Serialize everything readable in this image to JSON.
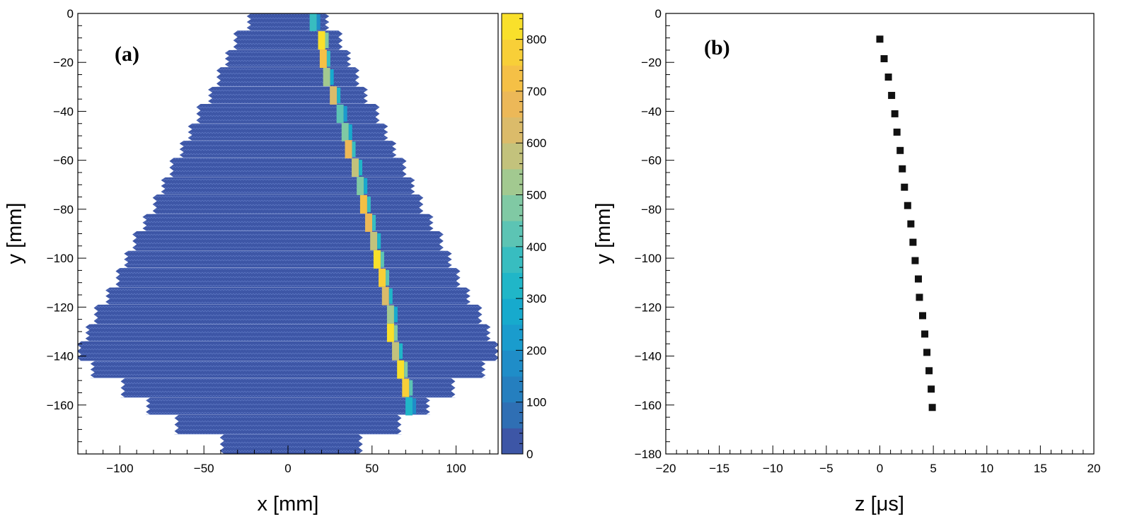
{
  "chart_data": [
    {
      "type": "heatmap",
      "panel_label": "(a)",
      "xlabel": "x [mm]",
      "ylabel": "y [mm]",
      "xlim": [
        -125,
        125
      ],
      "ylim": [
        -180,
        0
      ],
      "xticks": [
        -100,
        -50,
        0,
        50,
        100
      ],
      "xtick_labels": [
        "−100",
        "−50",
        "0",
        "50",
        "100"
      ],
      "yticks": [
        0,
        -20,
        -40,
        -60,
        -80,
        -100,
        -120,
        -140,
        -160
      ],
      "ytick_labels": [
        "0",
        "−20",
        "−40",
        "−60",
        "−80",
        "−100",
        "−120",
        "−140",
        "−160"
      ],
      "background_value": 0,
      "rows": [
        {
          "y_top": 0,
          "y_bottom": -7,
          "x_min": -22,
          "x_max": 22
        },
        {
          "y_top": -7,
          "y_bottom": -15,
          "x_min": -30,
          "x_max": 30
        },
        {
          "y_top": -15,
          "y_bottom": -22,
          "x_min": -35,
          "x_max": 35
        },
        {
          "y_top": -22,
          "y_bottom": -30,
          "x_min": -40,
          "x_max": 40
        },
        {
          "y_top": -30,
          "y_bottom": -37,
          "x_min": -45,
          "x_max": 45
        },
        {
          "y_top": -37,
          "y_bottom": -45,
          "x_min": -52,
          "x_max": 52
        },
        {
          "y_top": -45,
          "y_bottom": -52,
          "x_min": -57,
          "x_max": 57
        },
        {
          "y_top": -52,
          "y_bottom": -59,
          "x_min": -62,
          "x_max": 62
        },
        {
          "y_top": -59,
          "y_bottom": -67,
          "x_min": -68,
          "x_max": 68
        },
        {
          "y_top": -67,
          "y_bottom": -74,
          "x_min": -73,
          "x_max": 73
        },
        {
          "y_top": -74,
          "y_bottom": -82,
          "x_min": -78,
          "x_max": 78
        },
        {
          "y_top": -82,
          "y_bottom": -89,
          "x_min": -84,
          "x_max": 84
        },
        {
          "y_top": -89,
          "y_bottom": -97,
          "x_min": -90,
          "x_max": 90
        },
        {
          "y_top": -97,
          "y_bottom": -104,
          "x_min": -95,
          "x_max": 95
        },
        {
          "y_top": -104,
          "y_bottom": -112,
          "x_min": -100,
          "x_max": 100
        },
        {
          "y_top": -112,
          "y_bottom": -119,
          "x_min": -106,
          "x_max": 106
        },
        {
          "y_top": -119,
          "y_bottom": -127,
          "x_min": -113,
          "x_max": 113
        },
        {
          "y_top": -127,
          "y_bottom": -134,
          "x_min": -118,
          "x_max": 118
        },
        {
          "y_top": -134,
          "y_bottom": -142,
          "x_min": -123,
          "x_max": 123
        },
        {
          "y_top": -142,
          "y_bottom": -149,
          "x_min": -115,
          "x_max": 115
        },
        {
          "y_top": -149,
          "y_bottom": -157,
          "x_min": -97,
          "x_max": 97
        },
        {
          "y_top": -157,
          "y_bottom": -164,
          "x_min": -82,
          "x_max": 82
        },
        {
          "y_top": -164,
          "y_bottom": -172,
          "x_min": -65,
          "x_max": 65
        },
        {
          "y_top": -172,
          "y_bottom": -180,
          "x_min": -38,
          "x_max": 42
        }
      ],
      "track": [
        {
          "x": 15,
          "y": -3.5,
          "value": 350
        },
        {
          "x": 20,
          "y": -11,
          "value": 820
        },
        {
          "x": 21,
          "y": -18.5,
          "value": 700
        },
        {
          "x": 23,
          "y": -26,
          "value": 500
        },
        {
          "x": 27,
          "y": -33.5,
          "value": 620
        },
        {
          "x": 31,
          "y": -41,
          "value": 420
        },
        {
          "x": 34,
          "y": -48.5,
          "value": 470
        },
        {
          "x": 36,
          "y": -55.5,
          "value": 680
        },
        {
          "x": 40,
          "y": -63,
          "value": 560
        },
        {
          "x": 43,
          "y": -70.5,
          "value": 470
        },
        {
          "x": 45,
          "y": -78,
          "value": 720
        },
        {
          "x": 48,
          "y": -85.5,
          "value": 650
        },
        {
          "x": 51,
          "y": -93,
          "value": 580
        },
        {
          "x": 53,
          "y": -100.5,
          "value": 800
        },
        {
          "x": 56,
          "y": -108,
          "value": 760
        },
        {
          "x": 58,
          "y": -115.5,
          "value": 620
        },
        {
          "x": 61,
          "y": -123,
          "value": 540
        },
        {
          "x": 61,
          "y": -130.5,
          "value": 820
        },
        {
          "x": 64,
          "y": -138,
          "value": 560
        },
        {
          "x": 67,
          "y": -145.5,
          "value": 830
        },
        {
          "x": 70,
          "y": -153,
          "value": 780
        },
        {
          "x": 72,
          "y": -160.5,
          "value": 330
        }
      ],
      "colorbar": {
        "min": 0,
        "max": 850,
        "ticks": [
          0,
          100,
          200,
          300,
          400,
          500,
          600,
          700,
          800
        ],
        "tick_labels": [
          "0",
          "100",
          "200",
          "300",
          "400",
          "500",
          "600",
          "700",
          "800"
        ],
        "colors": [
          "#3d56a6",
          "#2f6fb4",
          "#257fbf",
          "#1f8dc8",
          "#1a9ccd",
          "#17aacd",
          "#20b6c8",
          "#38bdc0",
          "#5cc4b4",
          "#80c9a4",
          "#a2c990",
          "#c3c27c",
          "#dbbb6a",
          "#ecb858",
          "#f5c046",
          "#f8cf38",
          "#f9e02b"
        ]
      }
    },
    {
      "type": "scatter",
      "panel_label": "(b)",
      "xlabel": "z [μs]",
      "ylabel": "y [mm]",
      "xlim": [
        -20,
        20
      ],
      "ylim": [
        -180,
        0
      ],
      "xticks": [
        -20,
        -15,
        -10,
        -5,
        0,
        5,
        10,
        15,
        20
      ],
      "xtick_labels": [
        "−20",
        "−15",
        "−10",
        "−5",
        "0",
        "5",
        "10",
        "15",
        "20"
      ],
      "yticks": [
        0,
        -20,
        -40,
        -60,
        -80,
        -100,
        -120,
        -140,
        -160,
        -180
      ],
      "ytick_labels": [
        "0",
        "−20",
        "−40",
        "−60",
        "−80",
        "−100",
        "−120",
        "−140",
        "−160",
        "−180"
      ],
      "marker_color": "#111111",
      "points": [
        {
          "x": 0.0,
          "y": -10.5
        },
        {
          "x": 0.4,
          "y": -18.5
        },
        {
          "x": 0.8,
          "y": -26
        },
        {
          "x": 1.1,
          "y": -33.5
        },
        {
          "x": 1.4,
          "y": -41
        },
        {
          "x": 1.6,
          "y": -48.5
        },
        {
          "x": 1.9,
          "y": -56
        },
        {
          "x": 2.1,
          "y": -63.5
        },
        {
          "x": 2.3,
          "y": -71
        },
        {
          "x": 2.6,
          "y": -78.5
        },
        {
          "x": 2.9,
          "y": -86
        },
        {
          "x": 3.1,
          "y": -93.5
        },
        {
          "x": 3.3,
          "y": -101
        },
        {
          "x": 3.6,
          "y": -108.5
        },
        {
          "x": 3.7,
          "y": -116
        },
        {
          "x": 4.0,
          "y": -123.5
        },
        {
          "x": 4.2,
          "y": -131
        },
        {
          "x": 4.4,
          "y": -138.5
        },
        {
          "x": 4.6,
          "y": -146
        },
        {
          "x": 4.8,
          "y": -153.5
        },
        {
          "x": 4.9,
          "y": -161
        }
      ]
    }
  ]
}
